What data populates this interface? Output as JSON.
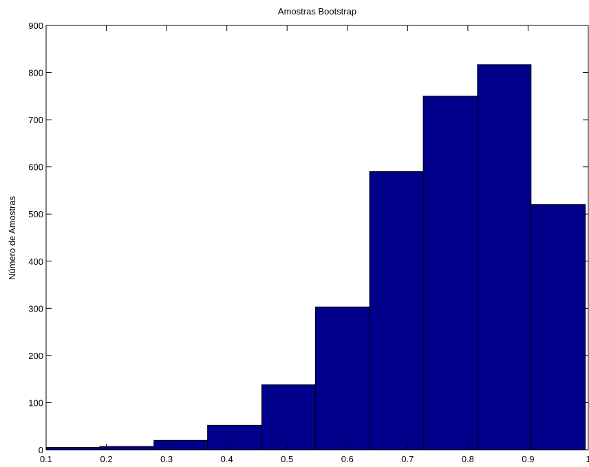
{
  "chart_data": {
    "type": "bar",
    "title": "Amostras Bootstrap",
    "xlabel": "",
    "ylabel": "Número de Amostras",
    "xlim": [
      0.1,
      1
    ],
    "ylim": [
      0,
      900
    ],
    "xticks": [
      "0.1",
      "0.2",
      "0.3",
      "0.4",
      "0.5",
      "0.6",
      "0.7",
      "0.8",
      "0.9",
      "1"
    ],
    "yticks": [
      "0",
      "100",
      "200",
      "300",
      "400",
      "500",
      "600",
      "700",
      "800",
      "900"
    ],
    "bins": [
      {
        "start": 0.1,
        "end": 0.189,
        "value": 5
      },
      {
        "start": 0.189,
        "end": 0.279,
        "value": 7
      },
      {
        "start": 0.279,
        "end": 0.368,
        "value": 20
      },
      {
        "start": 0.368,
        "end": 0.458,
        "value": 52
      },
      {
        "start": 0.458,
        "end": 0.547,
        "value": 138
      },
      {
        "start": 0.547,
        "end": 0.637,
        "value": 303
      },
      {
        "start": 0.637,
        "end": 0.726,
        "value": 590
      },
      {
        "start": 0.726,
        "end": 0.816,
        "value": 750
      },
      {
        "start": 0.816,
        "end": 0.905,
        "value": 817
      },
      {
        "start": 0.905,
        "end": 0.995,
        "value": 520
      }
    ],
    "bar_color": "#00008b",
    "grid": false,
    "legend": "none"
  }
}
